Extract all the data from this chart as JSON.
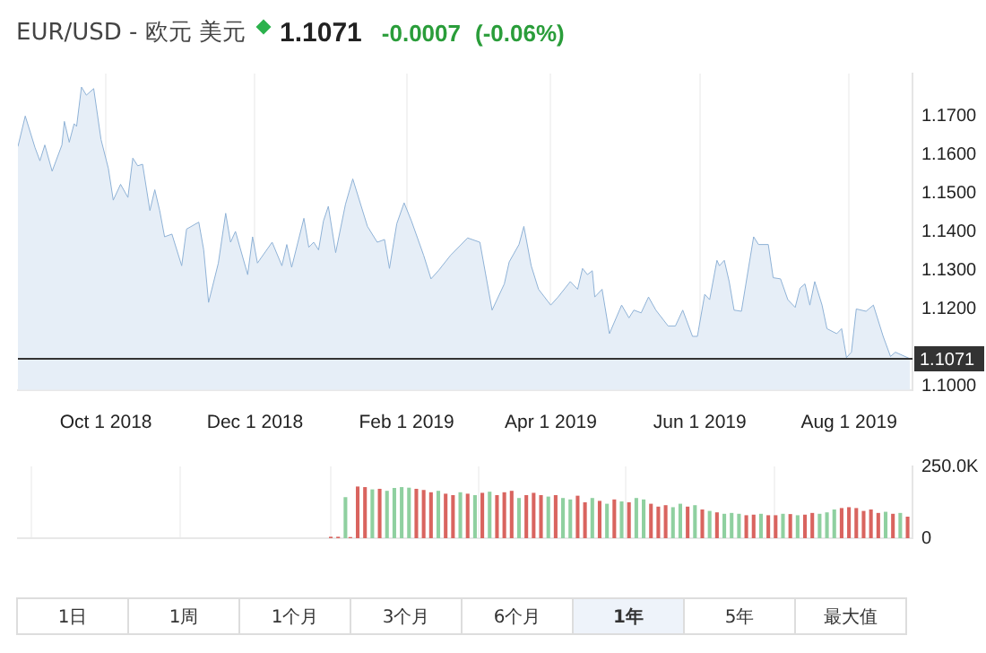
{
  "chart_data": [
    {
      "type": "area",
      "title": "EUR/USD - 欧元 美元",
      "annotations": [
        "1.1071",
        "-0.0007",
        "(-0.06%)"
      ],
      "series": [
        {
          "color": "#8fb2d6",
          "x": [
            "2018-08-26",
            "2018-08-29",
            "2018-09-02",
            "2018-09-04",
            "2018-09-06",
            "2018-09-09",
            "2018-09-13",
            "2018-09-14",
            "2018-09-16",
            "2018-09-18",
            "2018-09-19",
            "2018-09-21",
            "2018-09-23",
            "2018-09-26",
            "2018-09-29",
            "2018-10-02",
            "2018-10-04",
            "2018-10-07",
            "2018-10-10",
            "2018-10-12",
            "2018-10-14",
            "2018-10-16",
            "2018-10-19",
            "2018-10-21",
            "2018-10-23",
            "2018-10-25",
            "2018-10-28",
            "2018-11-01",
            "2018-11-03",
            "2018-11-08",
            "2018-11-10",
            "2018-11-12",
            "2018-11-16",
            "2018-11-19",
            "2018-11-21",
            "2018-11-23",
            "2018-11-28",
            "2018-11-30",
            "2018-12-02",
            "2018-12-08",
            "2018-12-12",
            "2018-12-14",
            "2018-12-16",
            "2018-12-21",
            "2018-12-23",
            "2018-12-25",
            "2018-12-27",
            "2018-12-29",
            "2018-12-31",
            "2019-01-03",
            "2019-01-07",
            "2019-01-10",
            "2019-01-12",
            "2019-01-16",
            "2019-01-20",
            "2019-01-23",
            "2019-01-25",
            "2019-01-28",
            "2019-01-31",
            "2019-02-03",
            "2019-02-08",
            "2019-02-11",
            "2019-02-14",
            "2019-02-19",
            "2019-02-26",
            "2019-03-03",
            "2019-03-08",
            "2019-03-13",
            "2019-03-15",
            "2019-03-19",
            "2019-03-21",
            "2019-03-24",
            "2019-03-27",
            "2019-04-01",
            "2019-04-04",
            "2019-04-09",
            "2019-04-12",
            "2019-04-14",
            "2019-04-16",
            "2019-04-18",
            "2019-04-19",
            "2019-04-22",
            "2019-04-25",
            "2019-04-30",
            "2019-05-03",
            "2019-05-05",
            "2019-05-08",
            "2019-05-11",
            "2019-05-14",
            "2019-05-19",
            "2019-05-22",
            "2019-05-25",
            "2019-05-29",
            "2019-05-31",
            "2019-06-03",
            "2019-06-05",
            "2019-06-08",
            "2019-06-09",
            "2019-06-11",
            "2019-06-13",
            "2019-06-15",
            "2019-06-18",
            "2019-06-23",
            "2019-06-25",
            "2019-06-29",
            "2019-07-01",
            "2019-07-04",
            "2019-07-07",
            "2019-07-10",
            "2019-07-12",
            "2019-07-14",
            "2019-07-16",
            "2019-07-18",
            "2019-07-21",
            "2019-07-23",
            "2019-07-27",
            "2019-07-29",
            "2019-07-31",
            "2019-08-02",
            "2019-08-04",
            "2019-08-08",
            "2019-08-11",
            "2019-08-15",
            "2019-08-18",
            "2019-08-20",
            "2019-08-26"
          ],
          "values": [
            1.1621,
            1.17,
            1.1618,
            1.1584,
            1.1625,
            1.1557,
            1.1625,
            1.1686,
            1.1632,
            1.168,
            1.1673,
            1.1775,
            1.1754,
            1.1771,
            1.1639,
            1.1564,
            1.1482,
            1.1523,
            1.1489,
            1.1591,
            1.1571,
            1.1575,
            1.1455,
            1.1509,
            1.1455,
            1.1387,
            1.1394,
            1.1312,
            1.1407,
            1.1425,
            1.1353,
            1.1217,
            1.1319,
            1.1448,
            1.1373,
            1.1401,
            1.1289,
            1.1387,
            1.1319,
            1.1373,
            1.1312,
            1.1367,
            1.1308,
            1.1435,
            1.136,
            1.1373,
            1.1353,
            1.1428,
            1.1466,
            1.1346,
            1.1471,
            1.1537,
            1.1496,
            1.1414,
            1.1373,
            1.138,
            1.1305,
            1.1421,
            1.1475,
            1.1428,
            1.1339,
            1.1278,
            1.1299,
            1.1339,
            1.1384,
            1.1373,
            1.1197,
            1.1265,
            1.1322,
            1.1367,
            1.1414,
            1.1312,
            1.1251,
            1.121,
            1.1231,
            1.1271,
            1.1251,
            1.1305,
            1.1289,
            1.1299,
            1.1231,
            1.1251,
            1.1136,
            1.121,
            1.1177,
            1.1197,
            1.119,
            1.1231,
            1.1197,
            1.1156,
            1.1156,
            1.1197,
            1.1129,
            1.1129,
            1.1238,
            1.1224,
            1.1326,
            1.1312,
            1.1326,
            1.1271,
            1.1197,
            1.1194,
            1.1387,
            1.1367,
            1.1367,
            1.1281,
            1.1278,
            1.1224,
            1.1204,
            1.1254,
            1.1265,
            1.121,
            1.1271,
            1.121,
            1.1149,
            1.1136,
            1.1149,
            1.1074,
            1.1088,
            1.12,
            1.1194,
            1.121,
            1.1129,
            1.1077,
            1.1088,
            1.1071
          ]
        }
      ],
      "xlim": [
        "2018-08-26",
        "2019-08-27"
      ],
      "xticks": [
        {
          "value": "2018-10-01",
          "label": "Oct 1 2018"
        },
        {
          "value": "2018-12-01",
          "label": "Dec 1 2018"
        },
        {
          "value": "2019-02-01",
          "label": "Feb 1 2019"
        },
        {
          "value": "2019-04-01",
          "label": "Apr 1 2019"
        },
        {
          "value": "2019-06-01",
          "label": "Jun 1 2019"
        },
        {
          "value": "2019-08-01",
          "label": "Aug 1 2019"
        }
      ],
      "ylim": [
        1.099,
        1.181
      ],
      "yticks": [
        {
          "value": 1.1,
          "label": "1.1000"
        },
        {
          "value": 1.12,
          "label": "1.1200"
        },
        {
          "value": 1.13,
          "label": "1.1300"
        },
        {
          "value": 1.14,
          "label": "1.1400"
        },
        {
          "value": 1.15,
          "label": "1.1500"
        },
        {
          "value": 1.16,
          "label": "1.1600"
        },
        {
          "value": 1.17,
          "label": "1.1700"
        }
      ],
      "ref_lines": [
        {
          "axis": "y",
          "value": 1.1071,
          "label": "1.1071",
          "color": "#333333"
        }
      ],
      "grid": "x"
    },
    {
      "type": "bar",
      "annotations": [
        "1日",
        "1周",
        "1个月",
        "3个月",
        "6个月",
        "1年",
        "5年",
        "最大值"
      ],
      "x": [
        "2019-01-01",
        "2019-01-04",
        "2019-01-07",
        "2019-01-09",
        "2019-01-12",
        "2019-01-15",
        "2019-01-18",
        "2019-01-21",
        "2019-01-24",
        "2019-01-27",
        "2019-01-30",
        "2019-02-02",
        "2019-02-05",
        "2019-02-08",
        "2019-02-11",
        "2019-02-14",
        "2019-02-17",
        "2019-02-20",
        "2019-02-23",
        "2019-02-26",
        "2019-03-01",
        "2019-03-04",
        "2019-03-07",
        "2019-03-10",
        "2019-03-13",
        "2019-03-16",
        "2019-03-19",
        "2019-03-22",
        "2019-03-25",
        "2019-03-28",
        "2019-03-31",
        "2019-04-03",
        "2019-04-06",
        "2019-04-09",
        "2019-04-12",
        "2019-04-15",
        "2019-04-18",
        "2019-04-21",
        "2019-04-24",
        "2019-04-27",
        "2019-04-30",
        "2019-05-03",
        "2019-05-06",
        "2019-05-09",
        "2019-05-12",
        "2019-05-15",
        "2019-05-18",
        "2019-05-21",
        "2019-05-24",
        "2019-05-27",
        "2019-05-30",
        "2019-06-02",
        "2019-06-05",
        "2019-06-08",
        "2019-06-11",
        "2019-06-14",
        "2019-06-17",
        "2019-06-20",
        "2019-06-23",
        "2019-06-26",
        "2019-06-29",
        "2019-07-02",
        "2019-07-05",
        "2019-07-08",
        "2019-07-11",
        "2019-07-14",
        "2019-07-17",
        "2019-07-20",
        "2019-07-23",
        "2019-07-26",
        "2019-07-29",
        "2019-08-01",
        "2019-08-04",
        "2019-08-07",
        "2019-08-10",
        "2019-08-13",
        "2019-08-16",
        "2019-08-19",
        "2019-08-22",
        "2019-08-25"
      ],
      "values": [
        5000,
        5000,
        143000,
        4000,
        180000,
        178000,
        170000,
        172000,
        165000,
        175000,
        178000,
        176000,
        172000,
        168000,
        160000,
        165000,
        155000,
        150000,
        160000,
        155000,
        150000,
        158000,
        162000,
        150000,
        160000,
        165000,
        140000,
        150000,
        158000,
        150000,
        145000,
        150000,
        140000,
        135000,
        148000,
        125000,
        140000,
        130000,
        120000,
        135000,
        128000,
        125000,
        140000,
        135000,
        120000,
        110000,
        115000,
        108000,
        120000,
        110000,
        115000,
        100000,
        95000,
        90000,
        85000,
        88000,
        85000,
        80000,
        82000,
        85000,
        80000,
        80000,
        85000,
        84000,
        80000,
        82000,
        88000,
        85000,
        90000,
        100000,
        105000,
        108000,
        105000,
        95000,
        100000,
        88000,
        92000,
        85000,
        88000,
        75000
      ],
      "colors": [
        "#d9645f",
        "#d9645f",
        "#8fd0a0",
        "#d9645f",
        "#d9645f",
        "#d9645f",
        "#8fd0a0",
        "#d9645f",
        "#8fd0a0",
        "#8fd0a0",
        "#8fd0a0",
        "#8fd0a0",
        "#d9645f",
        "#d9645f",
        "#d9645f",
        "#8fd0a0",
        "#d9645f",
        "#d9645f",
        "#8fd0a0",
        "#d9645f",
        "#8fd0a0",
        "#d9645f",
        "#8fd0a0",
        "#d9645f",
        "#d9645f",
        "#d9645f",
        "#8fd0a0",
        "#d9645f",
        "#d9645f",
        "#d9645f",
        "#8fd0a0",
        "#d9645f",
        "#8fd0a0",
        "#8fd0a0",
        "#d9645f",
        "#d9645f",
        "#8fd0a0",
        "#d9645f",
        "#8fd0a0",
        "#d9645f",
        "#8fd0a0",
        "#d9645f",
        "#8fd0a0",
        "#8fd0a0",
        "#d9645f",
        "#d9645f",
        "#d9645f",
        "#8fd0a0",
        "#8fd0a0",
        "#d9645f",
        "#8fd0a0",
        "#d9645f",
        "#8fd0a0",
        "#d9645f",
        "#8fd0a0",
        "#8fd0a0",
        "#8fd0a0",
        "#d9645f",
        "#d9645f",
        "#8fd0a0",
        "#d9645f",
        "#d9645f",
        "#8fd0a0",
        "#d9645f",
        "#8fd0a0",
        "#d9645f",
        "#d9645f",
        "#8fd0a0",
        "#8fd0a0",
        "#8fd0a0",
        "#d9645f",
        "#d9645f",
        "#d9645f",
        "#d9645f",
        "#d9645f",
        "#d9645f",
        "#8fd0a0",
        "#d9645f",
        "#8fd0a0",
        "#d9645f"
      ],
      "xlim": [
        "2018-08-26",
        "2019-08-27"
      ],
      "xticks": [
        {
          "value": "2018-10-01",
          "label": null
        },
        {
          "value": "2018-12-01",
          "label": null
        },
        {
          "value": "2019-02-01",
          "label": null
        },
        {
          "value": "2019-04-01",
          "label": null
        },
        {
          "value": "2019-06-01",
          "label": null
        },
        {
          "value": "2019-08-01",
          "label": null
        }
      ],
      "ylim": [
        0,
        250000
      ],
      "yticks": [
        0,
        {
          "value": 250000,
          "label": "250.0K"
        }
      ],
      "tick_labels": "y",
      "grid": "x"
    }
  ]
}
